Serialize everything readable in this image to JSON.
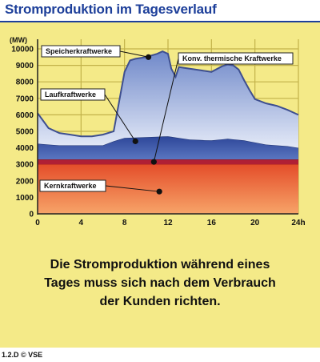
{
  "header": {
    "title": "Stromproduktion im Tagesverlauf"
  },
  "chart_data": {
    "type": "area",
    "stacked": true,
    "title": "Stromproduktion im Tagesverlauf",
    "ylabel": "(MW)",
    "xlabel": "",
    "x_tick_labels": [
      "0",
      "4",
      "8",
      "12",
      "16",
      "20",
      "24h"
    ],
    "y_tick_labels": [
      "0",
      "1000",
      "2000",
      "3000",
      "4000",
      "5000",
      "6000",
      "7000",
      "8000",
      "9000",
      "10000"
    ],
    "xlim": [
      0,
      24
    ],
    "ylim": [
      0,
      10000
    ],
    "grid": true,
    "colors": {
      "kern": "#e8552b",
      "thermisch": "#b01f35",
      "lauf": "#3b55a6",
      "speicher": "#8ea3d6"
    },
    "layers": [
      {
        "name": "Kernkraftwerke",
        "x": [
          0,
          24
        ],
        "top": [
          3000,
          3000
        ]
      },
      {
        "name": "Konv. thermische Kraftwerke",
        "x": [
          0,
          24
        ],
        "top": [
          3300,
          3300
        ]
      },
      {
        "name": "Laufkraftwerke",
        "x": [
          0,
          1,
          2,
          4,
          6,
          7,
          8,
          10,
          12,
          14,
          16,
          17.5,
          19,
          21,
          23,
          24
        ],
        "top": [
          4250,
          4200,
          4150,
          4150,
          4150,
          4400,
          4600,
          4650,
          4700,
          4500,
          4450,
          4550,
          4450,
          4200,
          4100,
          4000
        ]
      },
      {
        "name": "Speicherkraftwerke",
        "x": [
          0,
          1,
          2,
          3,
          4,
          5,
          6,
          7,
          7.5,
          8,
          8.5,
          9,
          10,
          10.5,
          11,
          11.5,
          12,
          12.3,
          12.7,
          13,
          14,
          15,
          15.5,
          16,
          17,
          17.5,
          18,
          18.5,
          19,
          19.5,
          20,
          21,
          22,
          23,
          24
        ],
        "top": [
          6100,
          5200,
          4900,
          4800,
          4700,
          4700,
          4800,
          5000,
          6800,
          8600,
          9300,
          9400,
          9500,
          9600,
          9700,
          9850,
          9700,
          8800,
          8300,
          8900,
          8800,
          8700,
          8650,
          8600,
          8950,
          9050,
          9000,
          8750,
          8100,
          7500,
          6950,
          6700,
          6550,
          6300,
          6000
        ]
      }
    ],
    "annotations": [
      "Speicherkraftwerke",
      "Laufkraftwerke",
      "Konv. thermische Kraftwerke",
      "Kernkraftwerke"
    ]
  },
  "caption": {
    "line1": "Die Stromproduktion während eines",
    "line2": "Tages muss sich nach dem Verbrauch",
    "line3": "der Kunden richten."
  },
  "footer": {
    "credit": "1.2.D © VSE"
  }
}
